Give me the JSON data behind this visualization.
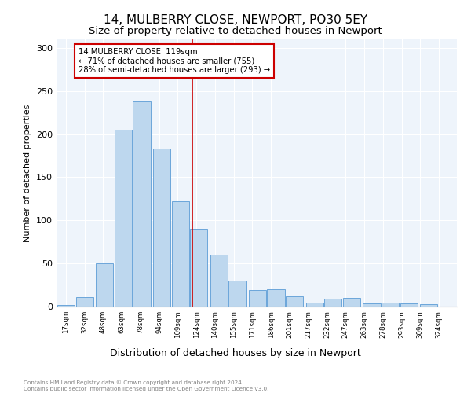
{
  "title": "14, MULBERRY CLOSE, NEWPORT, PO30 5EY",
  "subtitle": "Size of property relative to detached houses in Newport",
  "xlabel": "Distribution of detached houses by size in Newport",
  "ylabel": "Number of detached properties",
  "bar_values": [
    2,
    11,
    50,
    205,
    238,
    183,
    122,
    90,
    60,
    30,
    19,
    20,
    12,
    5,
    9,
    10,
    4,
    5,
    4,
    3
  ],
  "categories": [
    "17sqm",
    "32sqm",
    "48sqm",
    "63sqm",
    "78sqm",
    "94sqm",
    "109sqm",
    "124sqm",
    "140sqm",
    "155sqm",
    "171sqm",
    "186sqm",
    "201sqm",
    "217sqm",
    "232sqm",
    "247sqm",
    "263sqm",
    "278sqm",
    "293sqm",
    "309sqm",
    "324sqm"
  ],
  "bar_color": "#BDD7EE",
  "bar_edge_color": "#5B9BD5",
  "bar_positions": [
    17,
    32,
    48,
    63,
    78,
    94,
    109,
    124,
    140,
    155,
    171,
    186,
    201,
    217,
    232,
    247,
    263,
    278,
    293,
    309
  ],
  "vline_x": 119,
  "vline_color": "#CC0000",
  "annotation_text": "14 MULBERRY CLOSE: 119sqm\n← 71% of detached houses are smaller (755)\n28% of semi-detached houses are larger (293) →",
  "annotation_box_color": "#CC0000",
  "ylim": [
    0,
    310
  ],
  "yticks": [
    0,
    50,
    100,
    150,
    200,
    250,
    300
  ],
  "background_color": "#EEF4FB",
  "footer_text": "Contains HM Land Registry data © Crown copyright and database right 2024.\nContains public sector information licensed under the Open Government Licence v3.0.",
  "title_fontsize": 11,
  "subtitle_fontsize": 9.5
}
